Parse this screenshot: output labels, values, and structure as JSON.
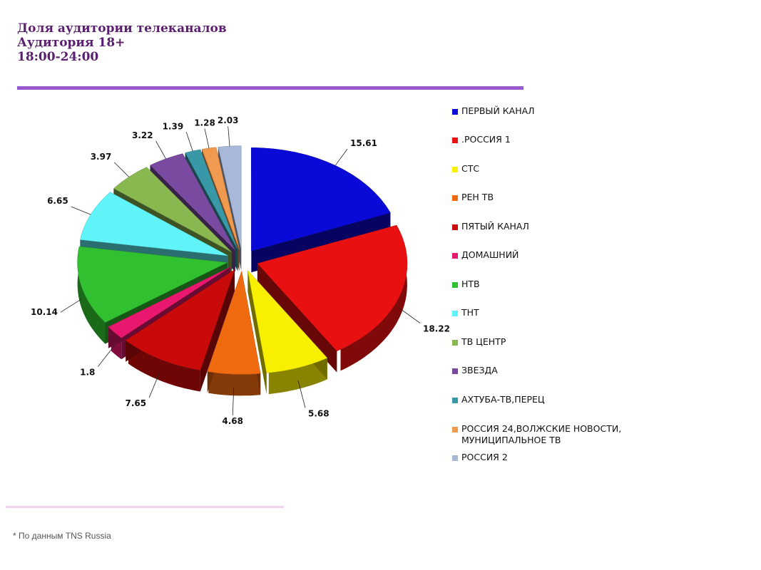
{
  "header": {
    "title_line1": "Доля аудитории телеканалов",
    "title_line2": "Аудитория 18+",
    "title_line3": "18:00-24:00"
  },
  "footnote": "* По данным TNS Russia",
  "chart_data": {
    "type": "pie",
    "variant": "3d exploded pie",
    "legend_placement": "right",
    "series": [
      {
        "name": "ПЕРВЫЙ КАНАЛ",
        "value": 15.61,
        "label": "15.61",
        "color": "#0a0ad8"
      },
      {
        "name": ".РОССИЯ 1",
        "value": 18.22,
        "label": "18.22",
        "color": "#e81010"
      },
      {
        "name": "СТС",
        "value": 5.68,
        "label": "5.68",
        "color": "#f8f000"
      },
      {
        "name": "РЕН ТВ",
        "value": 4.68,
        "label": "4.68",
        "color": "#f06a10"
      },
      {
        "name": "ПЯТЫЙ КАНАЛ",
        "value": 7.65,
        "label": "7.65",
        "color": "#c80a0a"
      },
      {
        "name": "ДОМАШНИЙ",
        "value": 1.8,
        "label": "1.8",
        "color": "#e8186e"
      },
      {
        "name": "НТВ",
        "value": 10.14,
        "label": "10.14",
        "color": "#30c030"
      },
      {
        "name": "ТНТ",
        "value": 6.65,
        "label": "6.65",
        "color": "#60f4f8"
      },
      {
        "name": "ТВ ЦЕНТР",
        "value": 3.97,
        "label": "3.97",
        "color": "#8ab850"
      },
      {
        "name": "ЗВЕЗДА",
        "value": 3.22,
        "label": "3.22",
        "color": "#7a4aa0"
      },
      {
        "name": "АХТУБА-ТВ,ПЕРЕЦ",
        "value": 1.39,
        "label": "1.39",
        "color": "#3898a8"
      },
      {
        "name": "РОССИЯ 24,ВОЛЖСКИЕ НОВОСТИ, МУНИЦИПАЛЬНОЕ ТВ",
        "value": 1.28,
        "label": "1.28",
        "color": "#f09a50"
      },
      {
        "name": "РОССИЯ 2",
        "value": 2.03,
        "label": "2.03",
        "color": "#a8b8d8"
      }
    ]
  }
}
